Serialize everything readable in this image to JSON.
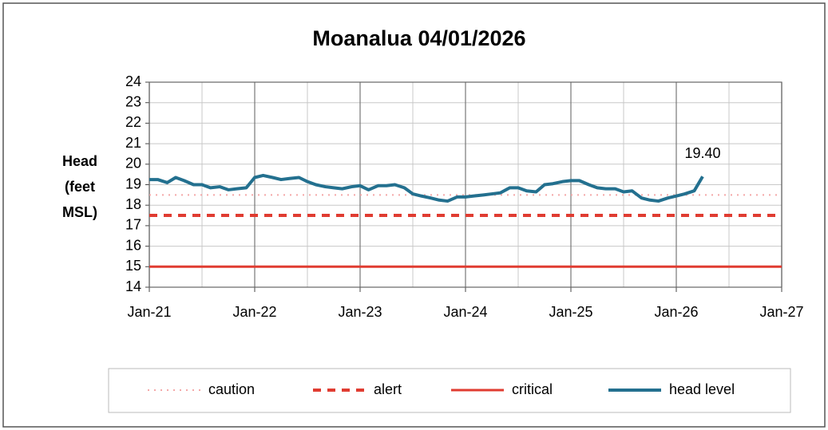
{
  "chart_data": {
    "type": "line",
    "title": "Moanalua 04/01/2026",
    "ylabel": [
      "Head",
      "(feet",
      "MSL)"
    ],
    "xlim": [
      2021,
      2027
    ],
    "xticks": [
      {
        "value": 2021,
        "label": "Jan-21"
      },
      {
        "value": 2022,
        "label": "Jan-22"
      },
      {
        "value": 2023,
        "label": "Jan-23"
      },
      {
        "value": 2024,
        "label": "Jan-24"
      },
      {
        "value": 2025,
        "label": "Jan-25"
      },
      {
        "value": 2026,
        "label": "Jan-26"
      },
      {
        "value": 2027,
        "label": "Jan-27"
      }
    ],
    "xminorticks": [
      2021.5,
      2022.5,
      2023.5,
      2024.5,
      2025.5,
      2026.5
    ],
    "ylim": [
      14,
      24
    ],
    "yticks": [
      14,
      15,
      16,
      17,
      18,
      19,
      20,
      21,
      22,
      23,
      24
    ],
    "grid": true,
    "series": [
      {
        "name": "caution",
        "color": "#f4a8a8",
        "style": "dotted",
        "x": [
          2021,
          2027
        ],
        "values": [
          18.5,
          18.5
        ]
      },
      {
        "name": "alert",
        "color": "#e03c31",
        "style": "dashed",
        "x": [
          2021,
          2027
        ],
        "values": [
          17.5,
          17.5
        ]
      },
      {
        "name": "critical",
        "color": "#e03c31",
        "style": "solid",
        "x": [
          2021,
          2027
        ],
        "values": [
          15,
          15
        ]
      },
      {
        "name": "head level",
        "color": "#23708f",
        "style": "solid",
        "x": [
          2021.0,
          2021.08,
          2021.17,
          2021.25,
          2021.33,
          2021.42,
          2021.5,
          2021.58,
          2021.67,
          2021.75,
          2021.83,
          2021.92,
          2022.0,
          2022.08,
          2022.17,
          2022.25,
          2022.33,
          2022.42,
          2022.5,
          2022.58,
          2022.67,
          2022.75,
          2022.83,
          2022.92,
          2023.0,
          2023.08,
          2023.17,
          2023.25,
          2023.33,
          2023.42,
          2023.5,
          2023.58,
          2023.67,
          2023.75,
          2023.83,
          2023.92,
          2024.0,
          2024.08,
          2024.17,
          2024.25,
          2024.33,
          2024.42,
          2024.5,
          2024.58,
          2024.67,
          2024.75,
          2024.83,
          2024.92,
          2025.0,
          2025.08,
          2025.17,
          2025.25,
          2025.33,
          2025.42,
          2025.5,
          2025.58,
          2025.67,
          2025.75,
          2025.83,
          2025.92,
          2026.0,
          2026.08,
          2026.17,
          2026.25
        ],
        "values": [
          19.25,
          19.25,
          19.1,
          19.35,
          19.2,
          19.0,
          19.0,
          18.85,
          18.9,
          18.75,
          18.8,
          18.85,
          19.35,
          19.45,
          19.35,
          19.25,
          19.3,
          19.35,
          19.15,
          19.0,
          18.9,
          18.85,
          18.8,
          18.9,
          18.95,
          18.75,
          18.95,
          18.95,
          19.0,
          18.85,
          18.55,
          18.45,
          18.35,
          18.25,
          18.2,
          18.4,
          18.4,
          18.45,
          18.5,
          18.55,
          18.6,
          18.85,
          18.85,
          18.7,
          18.65,
          19.0,
          19.05,
          19.15,
          19.2,
          19.2,
          19.0,
          18.85,
          18.8,
          18.8,
          18.65,
          18.7,
          18.35,
          18.25,
          18.2,
          18.35,
          18.45,
          18.55,
          18.7,
          19.4
        ]
      }
    ],
    "annotations": [
      {
        "text": "19.40",
        "x": 2026.25,
        "y": 19.4
      }
    ]
  }
}
